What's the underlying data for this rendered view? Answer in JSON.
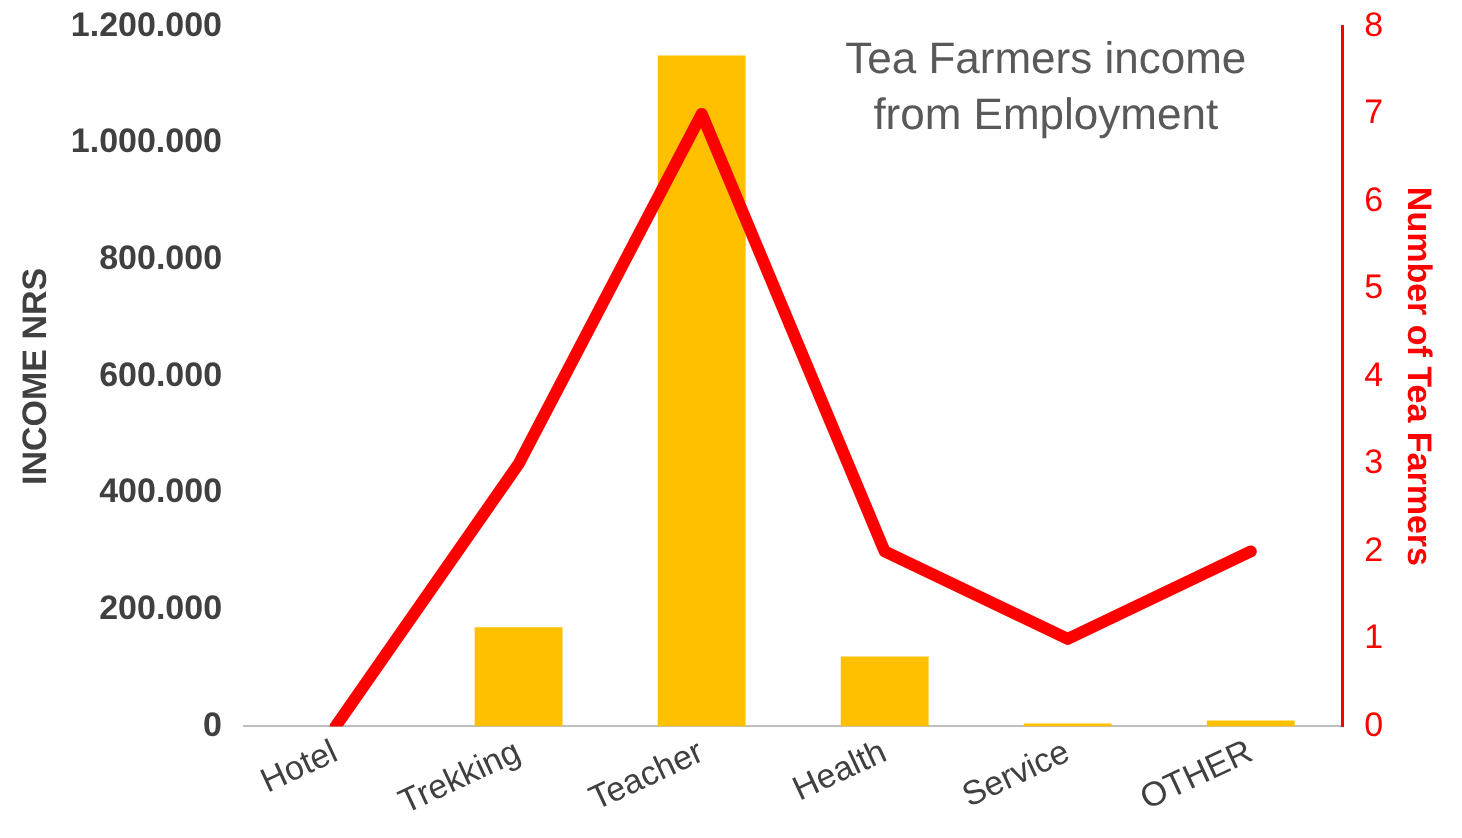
{
  "chart_data": {
    "type": "bar",
    "title": "Tea Farmers income from Employment",
    "ylabel": "INCOME NRS",
    "y2label": "Number of Tea Farmers",
    "categories": [
      "Hotel",
      "Trekking",
      "Teacher",
      "Health",
      "Service",
      "OTHER"
    ],
    "series": [
      {
        "color": "#ffc000",
        "values": [
          0,
          170000,
          1150000,
          120000,
          5000,
          10000
        ]
      },
      {
        "type": "line",
        "axis": "y2",
        "color": "#ff0000",
        "values": [
          0,
          3,
          7,
          2,
          1,
          2
        ]
      }
    ],
    "ylim": [
      0,
      1200000
    ],
    "yticks": [
      {
        "value": 0,
        "label": "0"
      },
      {
        "value": 200000,
        "label": "200.000"
      },
      {
        "value": 400000,
        "label": "400.000"
      },
      {
        "value": 600000,
        "label": "600.000"
      },
      {
        "value": 800000,
        "label": "800.000"
      },
      {
        "value": 1000000,
        "label": "1.000.000"
      },
      {
        "value": 1200000,
        "label": "1.200.000"
      }
    ],
    "y2lim": [
      0,
      8
    ],
    "y2ticks": [
      0,
      1,
      2,
      3,
      4,
      5,
      6,
      7,
      8
    ],
    "grid": false,
    "legend": false,
    "marker": "none"
  }
}
